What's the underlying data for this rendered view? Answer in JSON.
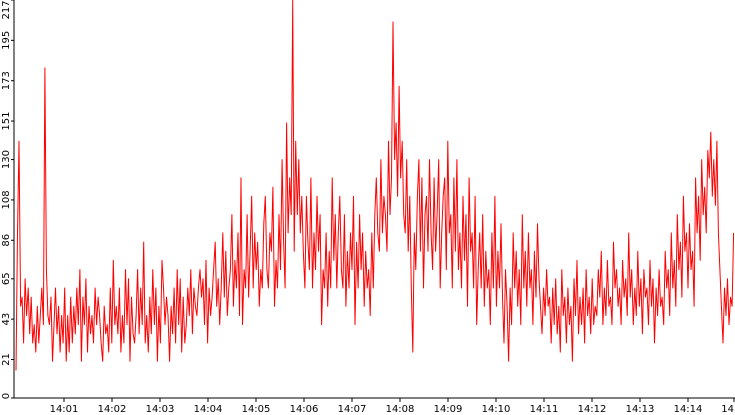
{
  "chart_data": {
    "type": "line",
    "title": "",
    "xlabel": "",
    "ylabel": "",
    "ylim": [
      0,
      217
    ],
    "y_ticks": [
      0,
      21,
      43,
      65,
      86,
      108,
      130,
      151,
      173,
      195,
      217
    ],
    "x_ticks": [
      "14:01",
      "14:02",
      "14:03",
      "14:04",
      "14:05",
      "14:06",
      "14:07",
      "14:08",
      "14:09",
      "14:10",
      "14:11",
      "14:12",
      "14:13",
      "14:14",
      "14"
    ],
    "x_tick_minutes": [
      1,
      2,
      3,
      4,
      5,
      6,
      7,
      8,
      9,
      10,
      11,
      12,
      13,
      14,
      15
    ],
    "grid": false,
    "legend": "none",
    "series": [
      {
        "name": "",
        "color": "#ff0000",
        "x_minutes_start": 0.0,
        "x_minutes_end": 14.95,
        "values": [
          15,
          90,
          140,
          50,
          55,
          30,
          65,
          45,
          60,
          35,
          55,
          30,
          40,
          25,
          50,
          30,
          45,
          60,
          40,
          180,
          70,
          45,
          40,
          55,
          20,
          40,
          60,
          35,
          50,
          25,
          45,
          30,
          60,
          20,
          45,
          25,
          55,
          30,
          50,
          35,
          60,
          40,
          70,
          20,
          55,
          40,
          65,
          25,
          50,
          35,
          45,
          30,
          60,
          40,
          55,
          45,
          30,
          20,
          50,
          35,
          40,
          25,
          60,
          30,
          75,
          40,
          50,
          35,
          60,
          25,
          45,
          30,
          70,
          40,
          65,
          20,
          55,
          35,
          30,
          45,
          70,
          35,
          60,
          40,
          85,
          30,
          45,
          25,
          55,
          35,
          70,
          40,
          60,
          20,
          50,
          30,
          75,
          60,
          40,
          55,
          45,
          20,
          50,
          35,
          60,
          30,
          70,
          40,
          65,
          25,
          55,
          30,
          40,
          60,
          45,
          70,
          35,
          60,
          50,
          45,
          60,
          70,
          55,
          65,
          40,
          75,
          30,
          60,
          45,
          55,
          70,
          85,
          50,
          65,
          40,
          60,
          90,
          55,
          80,
          45,
          60,
          70,
          100,
          50,
          75,
          60,
          90,
          45,
          120,
          40,
          70,
          60,
          100,
          55,
          80,
          110,
          60,
          90,
          70,
          85,
          50,
          70,
          60,
          95,
          110,
          70,
          60,
          90,
          80,
          115,
          50,
          75,
          60,
          100,
          70,
          130,
          85,
          60,
          150,
          90,
          120,
          100,
          217,
          80,
          140,
          100,
          130,
          90,
          110,
          80,
          60,
          110,
          85,
          70,
          120,
          60,
          90,
          70,
          110,
          80,
          100,
          40,
          70,
          60,
          90,
          50,
          80,
          60,
          120,
          75,
          100,
          60,
          90,
          110,
          70,
          60,
          100,
          50,
          80,
          60,
          90,
          70,
          110,
          40,
          85,
          60,
          100,
          70,
          90,
          50,
          80,
          60,
          70,
          45,
          90,
          60,
          100,
          120,
          90,
          80,
          130,
          90,
          110,
          100,
          80,
          140,
          100,
          120,
          205,
          130,
          150,
          110,
          170,
          120,
          140,
          100,
          90,
          130,
          80,
          110,
          60,
          25,
          90,
          70,
          110,
          130,
          80,
          120,
          60,
          100,
          110,
          80,
          130,
          90,
          70,
          120,
          80,
          100,
          130,
          60,
          90,
          110,
          120,
          70,
          140,
          90,
          100,
          60,
          120,
          80,
          130,
          70,
          90,
          60,
          110,
          75,
          100,
          50,
          120,
          80,
          90,
          60,
          110,
          40,
          70,
          90,
          60,
          100,
          50,
          80,
          60,
          70,
          40,
          90,
          60,
          110,
          50,
          80,
          60,
          95,
          55,
          30,
          70,
          50,
          20,
          60,
          40,
          90,
          60,
          80,
          50,
          70,
          40,
          100,
          60,
          80,
          50,
          90,
          60,
          70,
          40,
          80,
          55,
          95,
          65,
          50,
          35,
          60,
          45,
          70,
          50,
          55,
          30,
          60,
          40,
          65,
          35,
          50,
          25,
          70,
          45,
          55,
          30,
          60,
          40,
          50,
          20,
          65,
          45,
          75,
          35,
          55,
          40,
          60,
          30,
          70,
          45,
          55,
          35,
          65,
          40,
          50,
          45,
          70,
          55,
          80,
          40,
          60,
          45,
          75,
          50,
          55,
          40,
          85,
          60,
          70,
          50,
          60,
          40,
          75,
          55,
          65,
          45,
          90,
          55,
          70,
          40,
          60,
          45,
          80,
          50,
          65,
          35,
          70,
          55,
          60,
          40,
          75,
          50,
          65,
          30,
          60,
          45,
          70,
          50,
          55,
          40,
          80,
          60,
          70,
          45,
          90,
          60,
          75,
          50,
          100,
          70,
          85,
          55,
          110,
          80,
          90,
          60,
          95,
          70,
          80,
          50,
          120,
          90,
          110,
          75,
          130,
          100,
          115,
          90,
          135,
          120,
          145,
          110,
          130,
          105,
          140,
          90,
          70,
          50,
          30,
          60,
          45,
          65,
          40,
          55,
          50,
          90
        ]
      }
    ]
  }
}
